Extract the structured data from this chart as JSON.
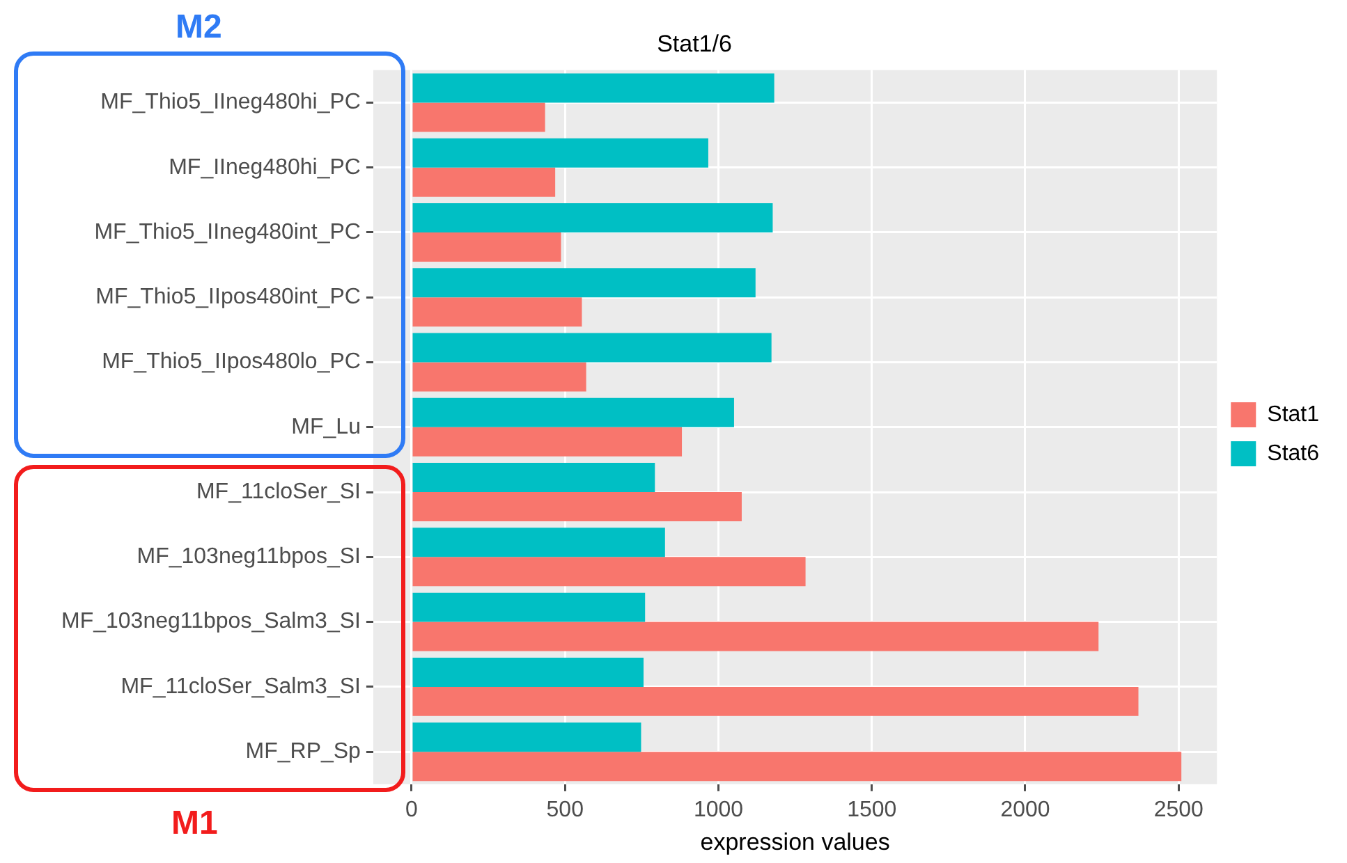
{
  "chart_data": {
    "type": "bar",
    "orientation": "horizontal",
    "title": "Stat1/6",
    "xlabel": "expression values",
    "categories": [
      "MF_Thio5_IIneg480hi_PC",
      "MF_IIneg480hi_PC",
      "MF_Thio5_IIneg480int_PC",
      "MF_Thio5_IIpos480int_PC",
      "MF_Thio5_IIpos480lo_PC",
      "MF_Lu",
      "MF_11cloSer_SI",
      "MF_103neg11bpos_SI",
      "MF_103neg11bpos_Salm3_SI",
      "MF_11cloSer_Salm3_SI",
      "MF_RP_Sp"
    ],
    "series": [
      {
        "name": "Stat1",
        "color": "#f8766d",
        "values": [
          435,
          468,
          487,
          555,
          569,
          881,
          1076,
          1284,
          2239,
          2369,
          2509
        ]
      },
      {
        "name": "Stat6",
        "color": "#00bfc4",
        "values": [
          1182,
          967,
          1177,
          1121,
          1173,
          1051,
          793,
          826,
          761,
          756,
          748
        ]
      }
    ],
    "xlim": [
      -125,
      2625
    ],
    "xticks": [
      0,
      500,
      1000,
      1500,
      2000,
      2500
    ],
    "grid": true,
    "legend": "right",
    "annotations": [
      "M2",
      "M1"
    ]
  }
}
